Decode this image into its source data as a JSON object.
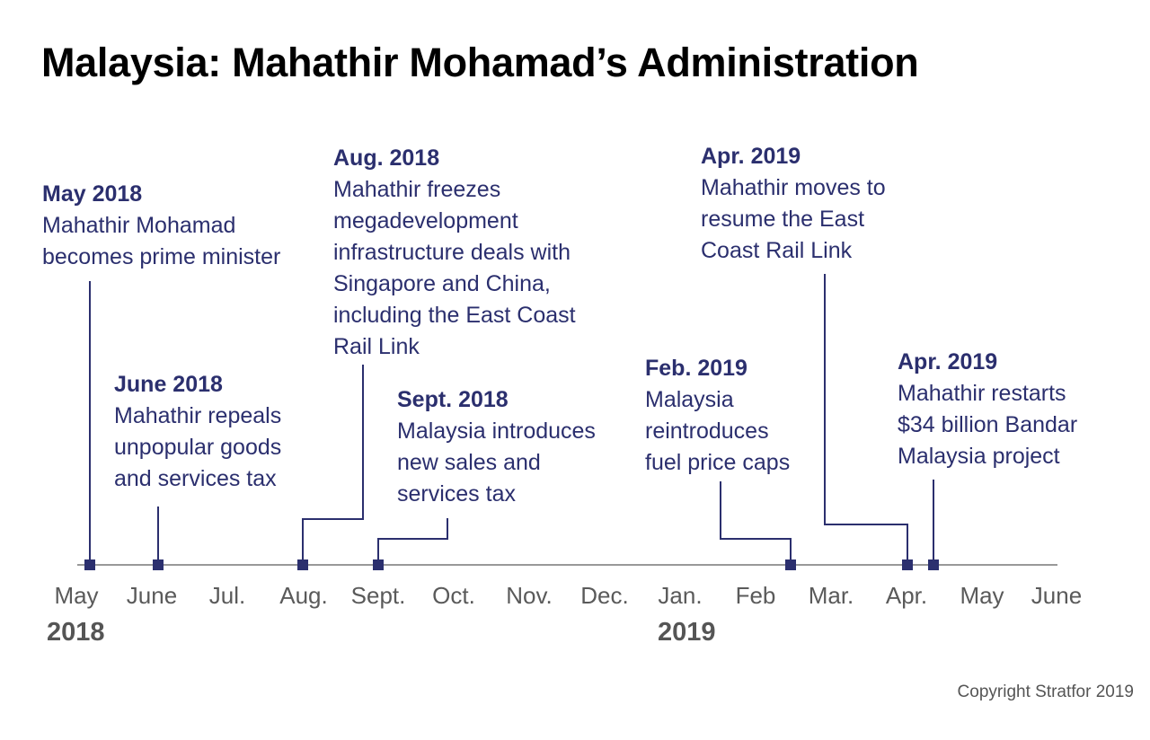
{
  "title": "Malaysia: Mahathir Mohamad’s Administration",
  "colors": {
    "accent": "#2b2f6e",
    "axis": "#999999",
    "text": "#000000",
    "muted": "#555555"
  },
  "timeline": {
    "months": [
      "May",
      "June",
      "Jul.",
      "Aug.",
      "Sept.",
      "Oct.",
      "Nov.",
      "Dec.",
      "Jan.",
      "Feb",
      "Mar.",
      "Apr.",
      "May",
      "June"
    ],
    "years": [
      "2018",
      "2019"
    ]
  },
  "events": [
    {
      "date": "May 2018",
      "text": "Mahathir Mohamad\nbecomes prime minister",
      "when": "2018-05"
    },
    {
      "date": "June 2018",
      "text": "Mahathir repeals\nunpopular goods\nand services tax",
      "when": "2018-06"
    },
    {
      "date": "Aug. 2018",
      "text": "Mahathir freezes\nmegadevelopment\ninfrastructure deals with\nSingapore and China,\nincluding the East Coast\nRail Link",
      "when": "2018-08"
    },
    {
      "date": "Sept. 2018",
      "text": "Malaysia introduces\nnew sales and\nservices tax",
      "when": "2018-09"
    },
    {
      "date": "Feb. 2019",
      "text": "Malaysia\nreintroduces\nfuel price caps",
      "when": "2019-02"
    },
    {
      "date": "Apr. 2019",
      "text": "Mahathir moves to\nresume the East\nCoast Rail Link",
      "when": "2019-04"
    },
    {
      "date": "Apr. 2019",
      "text": "Mahathir restarts\n$34 billion Bandar\nMalaysia project",
      "when": "2019-04"
    }
  ],
  "copyright": "Copyright Stratfor 2019"
}
